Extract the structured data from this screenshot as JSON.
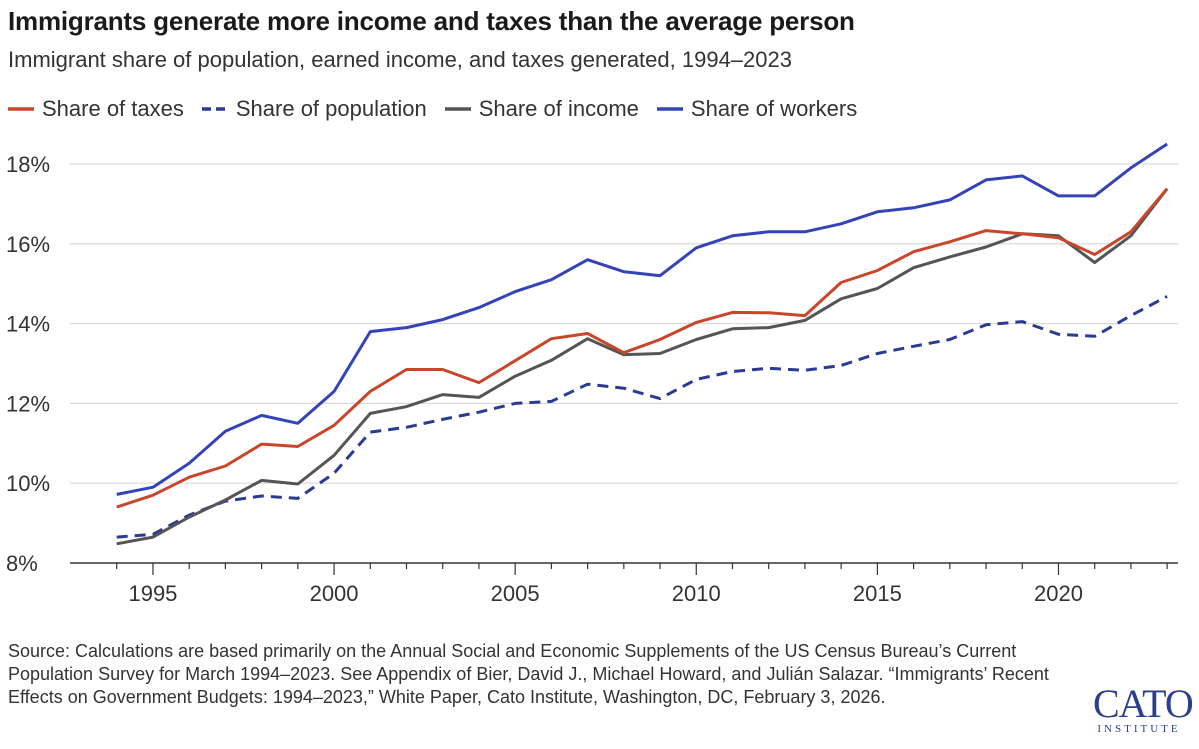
{
  "title": "Immigrants generate more income and taxes than the average person",
  "subtitle": "Immigrant share of population, earned income, and taxes generated, 1994–2023",
  "source": "Source: Calculations are based primarily on the Annual Social and Economic Supplements of the US Census Bureau’s Current Population Survey for March 1994–2023. See Appendix of Bier, David J., Michael Howard, and Julián Salazar. “Immigrants’ Recent Effects on Government Budgets: 1994–2023,” White Paper, Cato Institute, Washington, DC, February 3, 2026.",
  "logo": {
    "main": "CATO",
    "sub": "INSTITUTE"
  },
  "chart_data": {
    "type": "line",
    "x": [
      1994,
      1995,
      1996,
      1997,
      1998,
      1999,
      2000,
      2001,
      2002,
      2003,
      2004,
      2005,
      2006,
      2007,
      2008,
      2009,
      2010,
      2011,
      2012,
      2013,
      2014,
      2015,
      2016,
      2017,
      2018,
      2019,
      2020,
      2021,
      2022,
      2023
    ],
    "xlim": [
      1993.4,
      2023.3
    ],
    "ylim": [
      8,
      18.5
    ],
    "yticks": [
      8,
      10,
      12,
      14,
      16,
      18
    ],
    "ytick_labels": [
      "8%",
      "10%",
      "12%",
      "14%",
      "16%",
      "18%"
    ],
    "xticks": [
      1995,
      2000,
      2005,
      2010,
      2015,
      2020
    ],
    "xtick_labels": [
      "1995",
      "2000",
      "2005",
      "2010",
      "2015",
      "2020"
    ],
    "grid": "horizontal",
    "legend_position": "top-left",
    "series": [
      {
        "name": "Share of taxes",
        "color": "#c8462a",
        "dash": "solid",
        "values": [
          9.4,
          9.7,
          10.15,
          10.43,
          10.98,
          10.92,
          11.45,
          12.3,
          12.85,
          12.85,
          12.52,
          13.07,
          13.62,
          13.75,
          13.27,
          13.6,
          14.03,
          14.28,
          14.27,
          14.2,
          15.03,
          15.33,
          15.8,
          16.05,
          16.33,
          16.25,
          16.15,
          15.73,
          16.3,
          17.38
        ]
      },
      {
        "name": "Share of population",
        "color": "#2b3a92",
        "dash": "dashed",
        "values": [
          8.65,
          8.72,
          9.2,
          9.55,
          9.68,
          9.62,
          10.25,
          11.28,
          11.4,
          11.6,
          11.78,
          12.0,
          12.05,
          12.48,
          12.38,
          12.12,
          12.6,
          12.8,
          12.88,
          12.83,
          12.95,
          13.25,
          13.43,
          13.6,
          13.97,
          14.05,
          13.73,
          13.68,
          14.2,
          14.68
        ]
      },
      {
        "name": "Share of income",
        "color": "#555555",
        "dash": "solid",
        "values": [
          8.48,
          8.65,
          9.15,
          9.58,
          10.07,
          9.98,
          10.7,
          11.75,
          11.92,
          12.22,
          12.15,
          12.68,
          13.08,
          13.62,
          13.22,
          13.25,
          13.6,
          13.87,
          13.9,
          14.08,
          14.62,
          14.88,
          15.4,
          15.67,
          15.92,
          16.25,
          16.2,
          15.53,
          16.2,
          17.38
        ]
      },
      {
        "name": "Share of workers",
        "color": "#3443b8",
        "dash": "solid",
        "values": [
          9.72,
          9.9,
          10.5,
          11.3,
          11.7,
          11.5,
          12.3,
          13.8,
          13.9,
          14.1,
          14.4,
          14.8,
          15.1,
          15.6,
          15.3,
          15.2,
          15.9,
          16.2,
          16.3,
          16.3,
          16.5,
          16.8,
          16.9,
          17.1,
          17.6,
          17.7,
          17.2,
          17.2,
          17.9,
          18.5
        ]
      }
    ]
  }
}
